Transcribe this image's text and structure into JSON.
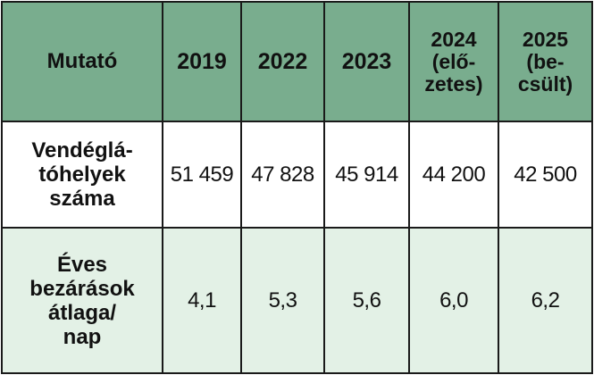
{
  "table": {
    "header": {
      "indicator_label": "Mutató",
      "years": [
        "2019",
        "2022",
        "2023",
        "2024\n(elő-\nzetes)",
        "2025\n(be-\ncsült)"
      ]
    },
    "rows": [
      {
        "label": "Vendéglá-\ntóhelyek\nszáma",
        "values": [
          "51 459",
          "47 828",
          "45 914",
          "44 200",
          "42 500"
        ]
      },
      {
        "label": "Éves\nbezárások\nátlaga/\nnap",
        "values": [
          "4,1",
          "5,3",
          "5,6",
          "6,0",
          "6,2"
        ]
      }
    ]
  },
  "colors": {
    "header_bg": "#79ad8e",
    "row_alt_bg": "#e3f1e6",
    "border": "#1a1a1a"
  }
}
